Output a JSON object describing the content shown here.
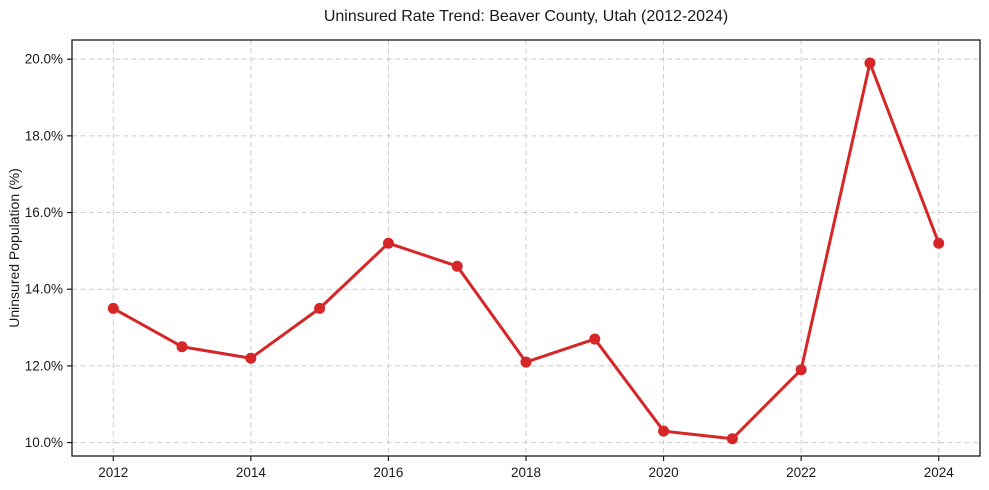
{
  "chart_data": {
    "type": "line",
    "title": "Uninsured Rate Trend: Beaver County, Utah (2012-2024)",
    "ylabel": "Uninsured Population (%)",
    "xlabel": "",
    "x": [
      2012,
      2013,
      2014,
      2015,
      2016,
      2017,
      2018,
      2019,
      2020,
      2021,
      2022,
      2023,
      2024
    ],
    "values": [
      13.5,
      12.5,
      12.2,
      13.5,
      15.2,
      14.6,
      12.1,
      12.7,
      10.3,
      10.1,
      11.9,
      19.9,
      15.2
    ],
    "xticks": [
      2012,
      2014,
      2016,
      2018,
      2020,
      2022,
      2024
    ],
    "xtick_labels": [
      "2012",
      "2014",
      "2016",
      "2018",
      "2020",
      "2022",
      "2024"
    ],
    "yticks": [
      10,
      12,
      14,
      16,
      18,
      20
    ],
    "ytick_labels": [
      "10.0%",
      "12.0%",
      "14.0%",
      "16.0%",
      "18.0%",
      "20.0%"
    ],
    "xlim": [
      2011.4,
      2024.6
    ],
    "ylim": [
      9.65,
      20.5
    ],
    "grid": true,
    "grid_style": "dashed",
    "legend": "none",
    "colors": {
      "line": "#d62728",
      "marker": "#d62728",
      "grid": "#cccccc",
      "frame": "#1a1a1a",
      "text": "#1a1a1a",
      "background": "#ffffff"
    }
  }
}
